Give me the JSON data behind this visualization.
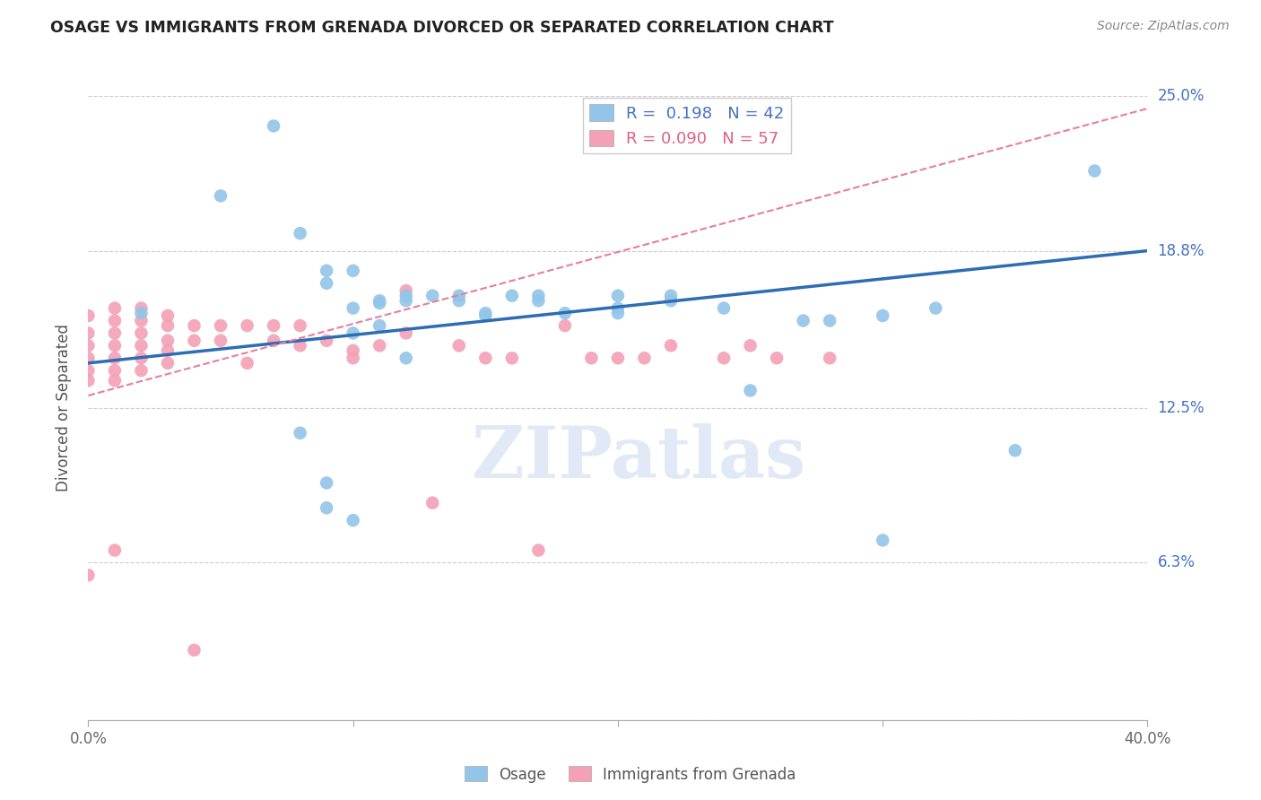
{
  "title": "OSAGE VS IMMIGRANTS FROM GRENADA DIVORCED OR SEPARATED CORRELATION CHART",
  "source": "Source: ZipAtlas.com",
  "ylabel_label": "Divorced or Separated",
  "watermark": "ZIPatlas",
  "R_osage": 0.198,
  "N_osage": 42,
  "R_grenada": 0.09,
  "N_grenada": 57,
  "xmin": 0.0,
  "xmax": 0.4,
  "ymin": 0.0,
  "ymax": 0.25,
  "osage_color": "#92C5E8",
  "grenada_color": "#F4A0B5",
  "osage_line_color": "#2E6DB4",
  "grenada_line_color": "#E87E9A",
  "background_color": "#FFFFFF",
  "grid_color": "#CCCCCC",
  "osage_scatter_x": [
    0.02,
    0.05,
    0.07,
    0.08,
    0.09,
    0.09,
    0.1,
    0.1,
    0.1,
    0.11,
    0.11,
    0.12,
    0.12,
    0.13,
    0.14,
    0.15,
    0.16,
    0.17,
    0.2,
    0.2,
    0.22,
    0.25,
    0.27,
    0.3,
    0.32,
    0.38,
    0.08,
    0.09,
    0.09,
    0.1,
    0.11,
    0.12,
    0.14,
    0.15,
    0.17,
    0.18,
    0.2,
    0.22,
    0.24,
    0.28,
    0.3,
    0.35
  ],
  "osage_scatter_y": [
    0.163,
    0.21,
    0.238,
    0.195,
    0.18,
    0.175,
    0.18,
    0.165,
    0.155,
    0.167,
    0.158,
    0.17,
    0.145,
    0.17,
    0.17,
    0.162,
    0.17,
    0.168,
    0.163,
    0.17,
    0.168,
    0.132,
    0.16,
    0.072,
    0.165,
    0.22,
    0.115,
    0.095,
    0.085,
    0.08,
    0.168,
    0.168,
    0.168,
    0.163,
    0.17,
    0.163,
    0.165,
    0.17,
    0.165,
    0.16,
    0.162,
    0.108
  ],
  "grenada_scatter_x": [
    0.0,
    0.0,
    0.0,
    0.0,
    0.0,
    0.0,
    0.0,
    0.01,
    0.01,
    0.01,
    0.01,
    0.01,
    0.01,
    0.01,
    0.01,
    0.02,
    0.02,
    0.02,
    0.02,
    0.02,
    0.02,
    0.03,
    0.03,
    0.03,
    0.03,
    0.03,
    0.04,
    0.04,
    0.04,
    0.05,
    0.05,
    0.06,
    0.06,
    0.07,
    0.07,
    0.08,
    0.08,
    0.09,
    0.1,
    0.1,
    0.11,
    0.12,
    0.12,
    0.13,
    0.14,
    0.15,
    0.16,
    0.17,
    0.18,
    0.19,
    0.2,
    0.21,
    0.22,
    0.24,
    0.25,
    0.26,
    0.28
  ],
  "grenada_scatter_y": [
    0.162,
    0.155,
    0.15,
    0.145,
    0.14,
    0.136,
    0.058,
    0.165,
    0.16,
    0.155,
    0.15,
    0.145,
    0.14,
    0.136,
    0.068,
    0.165,
    0.16,
    0.155,
    0.15,
    0.145,
    0.14,
    0.162,
    0.158,
    0.152,
    0.148,
    0.143,
    0.158,
    0.152,
    0.028,
    0.158,
    0.152,
    0.158,
    0.143,
    0.158,
    0.152,
    0.158,
    0.15,
    0.152,
    0.148,
    0.145,
    0.15,
    0.155,
    0.172,
    0.087,
    0.15,
    0.145,
    0.145,
    0.068,
    0.158,
    0.145,
    0.145,
    0.145,
    0.15,
    0.145,
    0.15,
    0.145,
    0.145
  ],
  "osage_line_x0": 0.0,
  "osage_line_y0": 0.143,
  "osage_line_x1": 0.4,
  "osage_line_y1": 0.188,
  "grenada_line_x0": 0.0,
  "grenada_line_y0": 0.13,
  "grenada_line_x1": 0.4,
  "grenada_line_y1": 0.245
}
